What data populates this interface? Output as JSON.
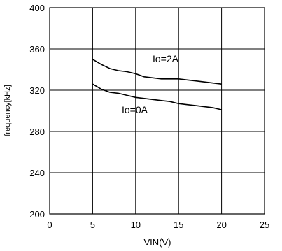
{
  "chart_data": {
    "type": "line",
    "xlabel": "VIN(V)",
    "ylabel": "frequency[kHz]",
    "xlim": [
      0,
      25
    ],
    "ylim": [
      200,
      400
    ],
    "xticks": [
      "0",
      "5",
      "10",
      "15",
      "20",
      "25"
    ],
    "yticks": [
      "200",
      "240",
      "280",
      "320",
      "360",
      "400"
    ],
    "grid": true,
    "series": [
      {
        "name": "Io=2A",
        "x": [
          5,
          6,
          7,
          8,
          9,
          10,
          11,
          12,
          13,
          14,
          15,
          16,
          17,
          18,
          19,
          20
        ],
        "y": [
          350,
          345,
          341,
          339,
          338,
          336,
          333,
          332,
          331,
          331,
          331,
          330,
          329,
          328,
          327,
          326
        ]
      },
      {
        "name": "Io=0A",
        "x": [
          5,
          6,
          7,
          8,
          9,
          10,
          11,
          12,
          13,
          14,
          15,
          16,
          17,
          18,
          19,
          20
        ],
        "y": [
          326,
          321,
          318,
          317,
          315,
          313,
          312,
          311,
          310,
          309,
          307,
          306,
          305,
          304,
          303,
          301
        ]
      }
    ]
  }
}
